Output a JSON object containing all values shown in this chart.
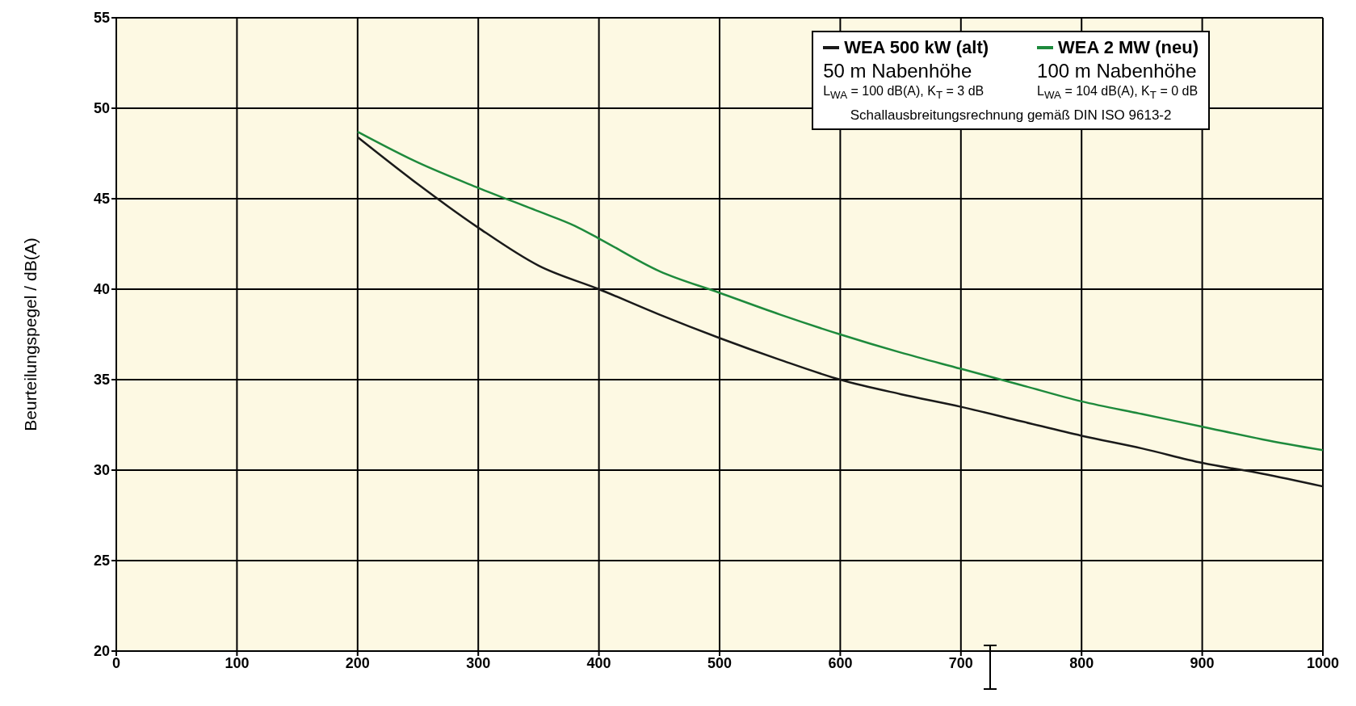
{
  "chart_data": {
    "type": "line",
    "ylabel": "Beurteilungspegel / dB(A)",
    "xlim": [
      0,
      1000
    ],
    "xticks": [
      0,
      100,
      200,
      300,
      400,
      500,
      600,
      700,
      800,
      900,
      1000
    ],
    "ylim": [
      20,
      55
    ],
    "yticks": [
      20,
      25,
      30,
      35,
      40,
      45,
      50,
      55
    ],
    "grid": true,
    "legend": "top right",
    "marker": "none",
    "line_style": "solid",
    "series": [
      {
        "name": "WEA 500 kW (alt)",
        "color": "#1a1a1a",
        "x": [
          200,
          250,
          300,
          350,
          400,
          450,
          500,
          550,
          600,
          650,
          700,
          750,
          800,
          850,
          900,
          950,
          1000
        ],
        "values": [
          48.4,
          45.8,
          43.4,
          41.3,
          40.0,
          38.6,
          37.3,
          36.1,
          35.0,
          34.2,
          33.5,
          32.7,
          31.9,
          31.2,
          30.4,
          29.8,
          29.1
        ]
      },
      {
        "name": "WEA 2 MW (neu)",
        "color": "#1e8a3c",
        "x": [
          200,
          250,
          300,
          350,
          380,
          400,
          450,
          500,
          550,
          600,
          650,
          700,
          750,
          800,
          850,
          900,
          950,
          1000
        ],
        "values": [
          48.7,
          47.0,
          45.6,
          44.3,
          43.5,
          42.8,
          41.0,
          39.8,
          38.6,
          37.5,
          36.5,
          35.6,
          34.7,
          33.8,
          33.1,
          32.4,
          31.7,
          31.1
        ]
      }
    ],
    "annotations": [
      "50 m Nabenhöhe",
      "L$_{WA}$ = 100 dB(A), K$_{T}$ = 3 dB",
      "100 m Nabenhöhe",
      "L$_{WA}$ = 104 dB(A), K$_{T}$ = 0 dB",
      "Schallausbreitungsrechnung gemäß DIN ISO 9613-2"
    ]
  }
}
